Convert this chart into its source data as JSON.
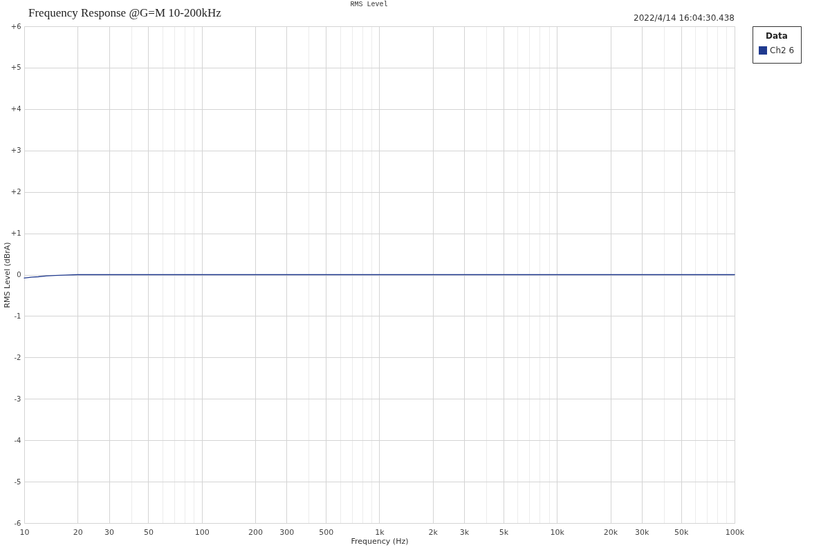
{
  "chart_data": {
    "type": "line",
    "title": "Frequency Response @G=M 10-200kHz",
    "subtitle": "RMS Level",
    "xlabel": "Frequency (Hz)",
    "ylabel": "RMS Level (dBrA)",
    "legend_title": "Data",
    "annotations": [
      "2022/4/14 16:04:30.438"
    ],
    "log": "x",
    "xlim": [
      10,
      100000
    ],
    "ylim": [
      -6,
      6
    ],
    "xticks": [
      10,
      20,
      30,
      {
        "value": 40,
        "label": null
      },
      50,
      {
        "value": 60,
        "label": null
      },
      {
        "value": 70,
        "label": null
      },
      {
        "value": 80,
        "label": null
      },
      {
        "value": 90,
        "label": null
      },
      100,
      200,
      300,
      {
        "value": 400,
        "label": null
      },
      500,
      {
        "value": 600,
        "label": null
      },
      {
        "value": 700,
        "label": null
      },
      {
        "value": 800,
        "label": null
      },
      {
        "value": 900,
        "label": null
      },
      {
        "value": 1000,
        "label": "1k"
      },
      {
        "value": 2000,
        "label": "2k"
      },
      {
        "value": 3000,
        "label": "3k"
      },
      {
        "value": 4000,
        "label": null
      },
      {
        "value": 5000,
        "label": "5k"
      },
      {
        "value": 6000,
        "label": null
      },
      {
        "value": 7000,
        "label": null
      },
      {
        "value": 8000,
        "label": null
      },
      {
        "value": 9000,
        "label": null
      },
      {
        "value": 10000,
        "label": "10k"
      },
      {
        "value": 20000,
        "label": "20k"
      },
      {
        "value": 30000,
        "label": "30k"
      },
      {
        "value": 40000,
        "label": null
      },
      {
        "value": 50000,
        "label": "50k"
      },
      {
        "value": 60000,
        "label": null
      },
      {
        "value": 70000,
        "label": null
      },
      {
        "value": 80000,
        "label": null
      },
      {
        "value": 90000,
        "label": null
      },
      {
        "value": 100000,
        "label": "100k"
      }
    ],
    "yticks": [
      {
        "value": -6,
        "label": "-6"
      },
      {
        "value": -5,
        "label": "-5"
      },
      {
        "value": -4,
        "label": "-4"
      },
      {
        "value": -3,
        "label": "-3"
      },
      {
        "value": -2,
        "label": "-2"
      },
      {
        "value": -1,
        "label": "-1"
      },
      0,
      {
        "value": 1,
        "label": "+1"
      },
      {
        "value": 2,
        "label": "+2"
      },
      {
        "value": 3,
        "label": "+3"
      },
      {
        "value": 4,
        "label": "+4"
      },
      {
        "value": 5,
        "label": "+5"
      },
      {
        "value": 6,
        "label": "+6"
      }
    ],
    "grid": true,
    "legend": "right",
    "line_style": "solid",
    "x": [
      10,
      11,
      12,
      13.3,
      15,
      17,
      20,
      50,
      100,
      1000,
      10000,
      100000
    ],
    "series": [
      {
        "name": "Ch2 6",
        "color": "#203a8f",
        "values": [
          -0.08,
          -0.06,
          -0.05,
          -0.03,
          -0.02,
          -0.01,
          0,
          0,
          0,
          0,
          0,
          0
        ]
      }
    ]
  }
}
